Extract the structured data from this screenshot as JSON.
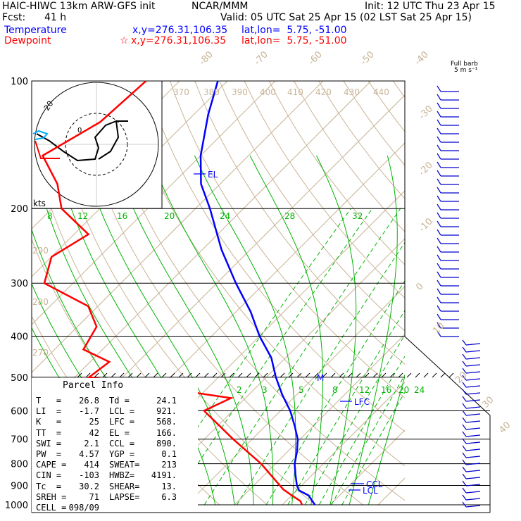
{
  "header": {
    "model": "HAIC-HIWC 13km ARW-GFS init",
    "org": "NCAR/MMM",
    "init": "Init: 12 UTC Thu 23 Apr 15",
    "fcst_label": "Fcst:",
    "fcst_value": "41 h",
    "valid": "Valid: 05 UTC Sat 25 Apr 15 (02 LST Sat 25 Apr 15)",
    "temperature_label": "Temperature",
    "temperature_xy": "x,y=276.31,106.35",
    "temperature_latlon": "lat,lon=  5.75, -51.00",
    "dewpoint_label": "Dewpoint",
    "dewpoint_xy": "x,y=276.31,106.35",
    "dewpoint_latlon": "lat,lon=  5.75, -51.00",
    "dewpoint_star": "☆",
    "barb_label_1": "Full barb",
    "barb_label_2": "5 m s⁻¹"
  },
  "colors": {
    "temperature": "#0000ff",
    "dewpoint": "#ff0000",
    "dry_adiabat": "#c8b496",
    "mixing_ratio": "#00b400",
    "moist_adiabat": "#00b400",
    "isotherm": "#c8b496",
    "isobar": "#000000"
  },
  "parcel_info": {
    "title": "Parcel Info",
    "rows": [
      [
        "T   =",
        "26.8",
        "Td =",
        "24.1"
      ],
      [
        "LI  =",
        "-1.7",
        "LCL =",
        "921."
      ],
      [
        "K   =",
        "25",
        "LFC =",
        "568."
      ],
      [
        "TT  =",
        "42",
        "EL =",
        "166."
      ],
      [
        "SWI =",
        "2.1",
        "CCL =",
        "890."
      ],
      [
        "PW  =",
        "4.57",
        "YGP =",
        "0.1"
      ],
      [
        "CAPE =",
        "414",
        "SWEAT=",
        "213"
      ],
      [
        "CIN =",
        "-103",
        "HWBZ=",
        "4191."
      ],
      [
        "Tc  =",
        "30.2",
        "SHEAR=",
        "13."
      ],
      [
        "SREH =",
        "71",
        "LAPSE=",
        "6.3"
      ],
      [
        "CELL =",
        "098/09",
        "",
        ""
      ]
    ]
  },
  "hodograph": {
    "kts_label": "kts",
    "ring_label": "20",
    "origin_label": "0"
  },
  "chart_data": {
    "type": "line",
    "title": "",
    "pressure_levels": [
      100,
      200,
      300,
      400,
      500,
      600,
      700,
      800,
      900,
      1000
    ],
    "isotherm_labels": [
      "-80",
      "-70",
      "-60",
      "-50",
      "-40",
      "-30",
      "-20",
      "-10",
      "0",
      "10",
      "20",
      "30",
      "40"
    ],
    "dry_adiabat_labels": [
      "370",
      "380",
      "390",
      "400",
      "410",
      "420",
      "430",
      "440",
      "290",
      "280",
      "270"
    ],
    "mixing_ratio_labels_upper": [
      "8",
      "12",
      "16",
      "20",
      "24",
      "28",
      "32"
    ],
    "mixing_ratio_labels_lower": [
      "2",
      "3",
      "5",
      "8",
      "12",
      "16",
      "20",
      "24"
    ],
    "level_labels": {
      "el": "EL",
      "lfc": "LFC",
      "ccl": "CCL",
      "lcl": "LCL",
      "m": "M"
    },
    "temperature_profile": [
      {
        "p": 100,
        "t": -82
      },
      {
        "p": 120,
        "t": -77
      },
      {
        "p": 150,
        "t": -70
      },
      {
        "p": 175,
        "t": -64
      },
      {
        "p": 200,
        "t": -57
      },
      {
        "p": 250,
        "t": -46
      },
      {
        "p": 300,
        "t": -36
      },
      {
        "p": 350,
        "t": -27
      },
      {
        "p": 400,
        "t": -20
      },
      {
        "p": 450,
        "t": -13
      },
      {
        "p": 500,
        "t": -8
      },
      {
        "p": 550,
        "t": -3
      },
      {
        "p": 600,
        "t": 2
      },
      {
        "p": 650,
        "t": 6
      },
      {
        "p": 700,
        "t": 9.5
      },
      {
        "p": 750,
        "t": 12
      },
      {
        "p": 800,
        "t": 14
      },
      {
        "p": 850,
        "t": 16.5
      },
      {
        "p": 900,
        "t": 19
      },
      {
        "p": 925,
        "t": 20.5
      },
      {
        "p": 950,
        "t": 23.5
      },
      {
        "p": 980,
        "t": 25.5
      },
      {
        "p": 1000,
        "t": 26.8
      }
    ],
    "dewpoint_profile": [
      {
        "p": 100,
        "t": -97
      },
      {
        "p": 125,
        "t": -98
      },
      {
        "p": 150,
        "t": -103
      },
      {
        "p": 175,
        "t": -94
      },
      {
        "p": 200,
        "t": -88
      },
      {
        "p": 230,
        "t": -77
      },
      {
        "p": 260,
        "t": -80
      },
      {
        "p": 300,
        "t": -76
      },
      {
        "p": 340,
        "t": -62
      },
      {
        "p": 380,
        "t": -56
      },
      {
        "p": 430,
        "t": -54
      },
      {
        "p": 460,
        "t": -46
      },
      {
        "p": 500,
        "t": -47
      },
      {
        "p": 560,
        "t": -13
      },
      {
        "p": 600,
        "t": -16
      },
      {
        "p": 700,
        "t": -4
      },
      {
        "p": 800,
        "t": 7
      },
      {
        "p": 870,
        "t": 13
      },
      {
        "p": 920,
        "t": 17
      },
      {
        "p": 950,
        "t": 20
      },
      {
        "p": 980,
        "t": 23
      },
      {
        "p": 1000,
        "t": 24.1
      }
    ],
    "xlim_temperature_at_1000hPa": [
      -30,
      40
    ],
    "ylim_pressure": [
      1000,
      100
    ],
    "y_scale": "log",
    "legend": "top-left"
  }
}
